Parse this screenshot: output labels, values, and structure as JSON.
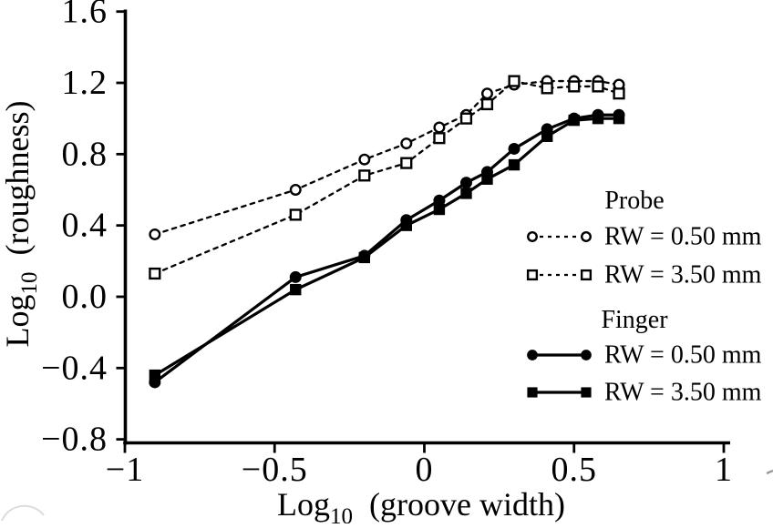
{
  "chart_data": {
    "type": "line",
    "title": "",
    "xlabel": "Log10 (groove width)",
    "ylabel": "Log10 (roughness)",
    "xlabel_parts": {
      "base": "Log",
      "sub": "10",
      "rest": "(groove width)"
    },
    "ylabel_parts": {
      "base": "Log",
      "sub": "10",
      "rest": "(roughness)"
    },
    "xlim": [
      -1,
      1
    ],
    "ylim": [
      -0.8,
      1.6
    ],
    "grid": false,
    "x_ticks": [
      {
        "value": -1,
        "label": "−1"
      },
      {
        "value": -0.5,
        "label": "−0.5"
      },
      {
        "value": 0,
        "label": "0"
      },
      {
        "value": 0.5,
        "label": "0.5"
      },
      {
        "value": 1,
        "label": "1"
      }
    ],
    "y_ticks": [
      {
        "value": 1.6,
        "label": "1.6"
      },
      {
        "value": 1.2,
        "label": "1.2"
      },
      {
        "value": 0.8,
        "label": "0.8"
      },
      {
        "value": 0.4,
        "label": "0.4"
      },
      {
        "value": 0.0,
        "label": "0.0"
      },
      {
        "value": -0.4,
        "label": "−0.4"
      },
      {
        "value": -0.8,
        "label": "−0.8"
      }
    ],
    "x": [
      -0.9,
      -0.43,
      -0.2,
      -0.06,
      0.05,
      0.14,
      0.21,
      0.3,
      0.41,
      0.5,
      0.58,
      0.65
    ],
    "series": [
      {
        "group": "Probe",
        "label": "RW = 0.50 mm",
        "marker": "circle-open",
        "line": "dashed",
        "values": [
          0.35,
          0.6,
          0.77,
          0.86,
          0.95,
          1.02,
          1.14,
          1.19,
          1.21,
          1.21,
          1.21,
          1.19
        ]
      },
      {
        "group": "Probe",
        "label": "RW = 3.50 mm",
        "marker": "square-open",
        "line": "dashed",
        "values": [
          0.13,
          0.46,
          0.68,
          0.75,
          0.89,
          1.0,
          1.08,
          1.21,
          1.17,
          1.18,
          1.18,
          1.14
        ]
      },
      {
        "group": "Finger",
        "label": "RW = 0.50 mm",
        "marker": "circle-filled",
        "line": "solid",
        "values": [
          -0.48,
          0.11,
          0.23,
          0.43,
          0.54,
          0.64,
          0.7,
          0.83,
          0.94,
          1.0,
          1.02,
          1.02
        ]
      },
      {
        "group": "Finger",
        "label": "RW = 3.50 mm",
        "marker": "square-filled",
        "line": "solid",
        "values": [
          -0.44,
          0.04,
          0.22,
          0.4,
          0.49,
          0.58,
          0.66,
          0.74,
          0.9,
          0.99,
          1.0,
          1.0
        ]
      }
    ],
    "legend": {
      "position": "inside-right",
      "groups": [
        {
          "title": "Probe",
          "series": [
            0,
            1
          ]
        },
        {
          "title": "Finger",
          "series": [
            2,
            3
          ]
        }
      ]
    },
    "colors": {
      "ink": "#000000",
      "background": "#ffffff"
    }
  }
}
